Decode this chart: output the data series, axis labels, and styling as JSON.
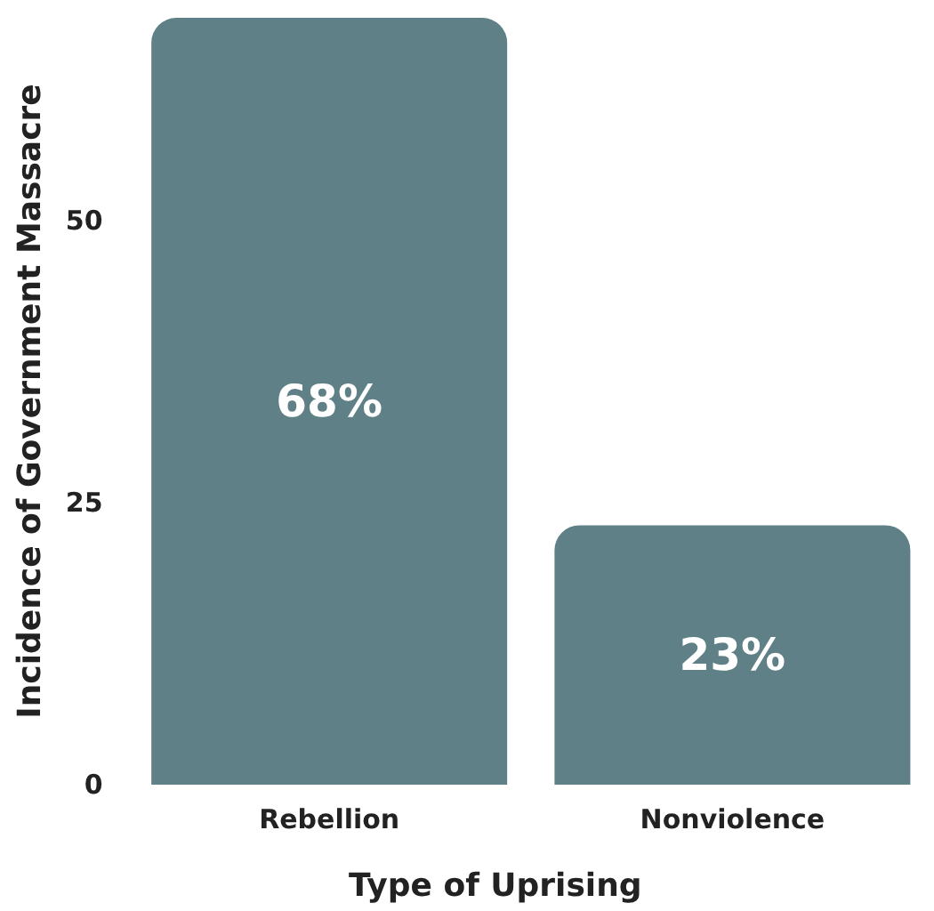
{
  "chart_data": {
    "type": "bar",
    "xlabel": "Type of Uprising",
    "ylabel": "Incidence of Government Massacre",
    "categories": [
      "Rebellion",
      "Nonviolence"
    ],
    "values": [
      68,
      23
    ],
    "value_labels": [
      "68%",
      "23%"
    ],
    "color": "#5f8086",
    "ylim": [
      0,
      68
    ],
    "yticks": [
      0,
      25,
      50
    ],
    "grid": false
  }
}
